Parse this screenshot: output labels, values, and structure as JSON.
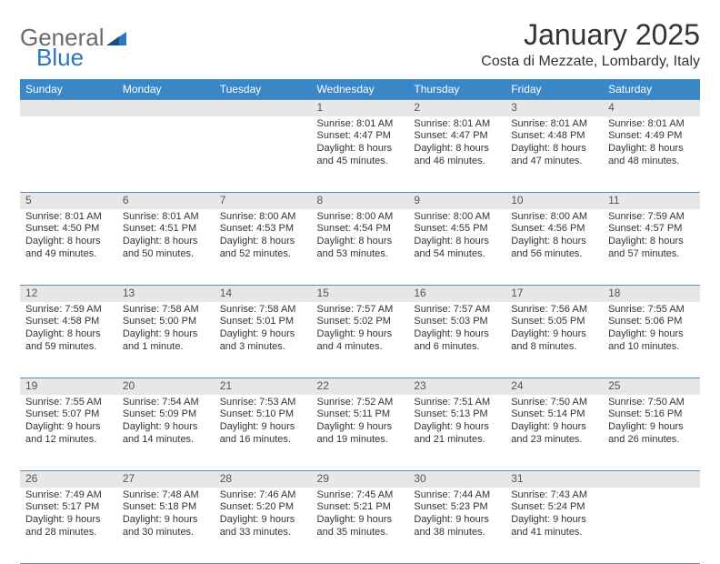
{
  "logo": {
    "part1": "General",
    "part2": "Blue"
  },
  "title": "January 2025",
  "location": "Costa di Mezzate, Lombardy, Italy",
  "header_bg": "#3a87c8",
  "daynum_bg": "#e7e7e7",
  "border_color": "#5d8cb6",
  "weekdays": [
    "Sunday",
    "Monday",
    "Tuesday",
    "Wednesday",
    "Thursday",
    "Friday",
    "Saturday"
  ],
  "weeks": [
    [
      null,
      null,
      null,
      {
        "n": "1",
        "sr": "Sunrise: 8:01 AM",
        "ss": "Sunset: 4:47 PM",
        "d1": "Daylight: 8 hours",
        "d2": "and 45 minutes."
      },
      {
        "n": "2",
        "sr": "Sunrise: 8:01 AM",
        "ss": "Sunset: 4:47 PM",
        "d1": "Daylight: 8 hours",
        "d2": "and 46 minutes."
      },
      {
        "n": "3",
        "sr": "Sunrise: 8:01 AM",
        "ss": "Sunset: 4:48 PM",
        "d1": "Daylight: 8 hours",
        "d2": "and 47 minutes."
      },
      {
        "n": "4",
        "sr": "Sunrise: 8:01 AM",
        "ss": "Sunset: 4:49 PM",
        "d1": "Daylight: 8 hours",
        "d2": "and 48 minutes."
      }
    ],
    [
      {
        "n": "5",
        "sr": "Sunrise: 8:01 AM",
        "ss": "Sunset: 4:50 PM",
        "d1": "Daylight: 8 hours",
        "d2": "and 49 minutes."
      },
      {
        "n": "6",
        "sr": "Sunrise: 8:01 AM",
        "ss": "Sunset: 4:51 PM",
        "d1": "Daylight: 8 hours",
        "d2": "and 50 minutes."
      },
      {
        "n": "7",
        "sr": "Sunrise: 8:00 AM",
        "ss": "Sunset: 4:53 PM",
        "d1": "Daylight: 8 hours",
        "d2": "and 52 minutes."
      },
      {
        "n": "8",
        "sr": "Sunrise: 8:00 AM",
        "ss": "Sunset: 4:54 PM",
        "d1": "Daylight: 8 hours",
        "d2": "and 53 minutes."
      },
      {
        "n": "9",
        "sr": "Sunrise: 8:00 AM",
        "ss": "Sunset: 4:55 PM",
        "d1": "Daylight: 8 hours",
        "d2": "and 54 minutes."
      },
      {
        "n": "10",
        "sr": "Sunrise: 8:00 AM",
        "ss": "Sunset: 4:56 PM",
        "d1": "Daylight: 8 hours",
        "d2": "and 56 minutes."
      },
      {
        "n": "11",
        "sr": "Sunrise: 7:59 AM",
        "ss": "Sunset: 4:57 PM",
        "d1": "Daylight: 8 hours",
        "d2": "and 57 minutes."
      }
    ],
    [
      {
        "n": "12",
        "sr": "Sunrise: 7:59 AM",
        "ss": "Sunset: 4:58 PM",
        "d1": "Daylight: 8 hours",
        "d2": "and 59 minutes."
      },
      {
        "n": "13",
        "sr": "Sunrise: 7:58 AM",
        "ss": "Sunset: 5:00 PM",
        "d1": "Daylight: 9 hours",
        "d2": "and 1 minute."
      },
      {
        "n": "14",
        "sr": "Sunrise: 7:58 AM",
        "ss": "Sunset: 5:01 PM",
        "d1": "Daylight: 9 hours",
        "d2": "and 3 minutes."
      },
      {
        "n": "15",
        "sr": "Sunrise: 7:57 AM",
        "ss": "Sunset: 5:02 PM",
        "d1": "Daylight: 9 hours",
        "d2": "and 4 minutes."
      },
      {
        "n": "16",
        "sr": "Sunrise: 7:57 AM",
        "ss": "Sunset: 5:03 PM",
        "d1": "Daylight: 9 hours",
        "d2": "and 6 minutes."
      },
      {
        "n": "17",
        "sr": "Sunrise: 7:56 AM",
        "ss": "Sunset: 5:05 PM",
        "d1": "Daylight: 9 hours",
        "d2": "and 8 minutes."
      },
      {
        "n": "18",
        "sr": "Sunrise: 7:55 AM",
        "ss": "Sunset: 5:06 PM",
        "d1": "Daylight: 9 hours",
        "d2": "and 10 minutes."
      }
    ],
    [
      {
        "n": "19",
        "sr": "Sunrise: 7:55 AM",
        "ss": "Sunset: 5:07 PM",
        "d1": "Daylight: 9 hours",
        "d2": "and 12 minutes."
      },
      {
        "n": "20",
        "sr": "Sunrise: 7:54 AM",
        "ss": "Sunset: 5:09 PM",
        "d1": "Daylight: 9 hours",
        "d2": "and 14 minutes."
      },
      {
        "n": "21",
        "sr": "Sunrise: 7:53 AM",
        "ss": "Sunset: 5:10 PM",
        "d1": "Daylight: 9 hours",
        "d2": "and 16 minutes."
      },
      {
        "n": "22",
        "sr": "Sunrise: 7:52 AM",
        "ss": "Sunset: 5:11 PM",
        "d1": "Daylight: 9 hours",
        "d2": "and 19 minutes."
      },
      {
        "n": "23",
        "sr": "Sunrise: 7:51 AM",
        "ss": "Sunset: 5:13 PM",
        "d1": "Daylight: 9 hours",
        "d2": "and 21 minutes."
      },
      {
        "n": "24",
        "sr": "Sunrise: 7:50 AM",
        "ss": "Sunset: 5:14 PM",
        "d1": "Daylight: 9 hours",
        "d2": "and 23 minutes."
      },
      {
        "n": "25",
        "sr": "Sunrise: 7:50 AM",
        "ss": "Sunset: 5:16 PM",
        "d1": "Daylight: 9 hours",
        "d2": "and 26 minutes."
      }
    ],
    [
      {
        "n": "26",
        "sr": "Sunrise: 7:49 AM",
        "ss": "Sunset: 5:17 PM",
        "d1": "Daylight: 9 hours",
        "d2": "and 28 minutes."
      },
      {
        "n": "27",
        "sr": "Sunrise: 7:48 AM",
        "ss": "Sunset: 5:18 PM",
        "d1": "Daylight: 9 hours",
        "d2": "and 30 minutes."
      },
      {
        "n": "28",
        "sr": "Sunrise: 7:46 AM",
        "ss": "Sunset: 5:20 PM",
        "d1": "Daylight: 9 hours",
        "d2": "and 33 minutes."
      },
      {
        "n": "29",
        "sr": "Sunrise: 7:45 AM",
        "ss": "Sunset: 5:21 PM",
        "d1": "Daylight: 9 hours",
        "d2": "and 35 minutes."
      },
      {
        "n": "30",
        "sr": "Sunrise: 7:44 AM",
        "ss": "Sunset: 5:23 PM",
        "d1": "Daylight: 9 hours",
        "d2": "and 38 minutes."
      },
      {
        "n": "31",
        "sr": "Sunrise: 7:43 AM",
        "ss": "Sunset: 5:24 PM",
        "d1": "Daylight: 9 hours",
        "d2": "and 41 minutes."
      },
      null
    ]
  ]
}
